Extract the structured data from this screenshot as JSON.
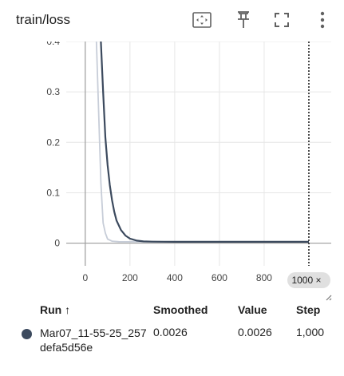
{
  "card": {
    "title": "train/loss",
    "tools": [
      {
        "name": "fit-domain-icon"
      },
      {
        "name": "pin-icon"
      },
      {
        "name": "fullscreen-icon"
      },
      {
        "name": "more-vert-icon"
      }
    ]
  },
  "chart_data": {
    "type": "line",
    "xlabel": "",
    "ylabel": "",
    "xlim": [
      -85,
      1100
    ],
    "ylim": [
      -0.045,
      0.4
    ],
    "x_ticks": [
      "0",
      "200",
      "400",
      "600",
      "800"
    ],
    "y_ticks": [
      "0",
      "0.1",
      "0.2",
      "0.3",
      "0.4"
    ],
    "hover_x": 1000,
    "hover_label": "1000",
    "grid": true,
    "series": [
      {
        "role": "raw",
        "color": "#c7cdd8",
        "x": [
          50,
          60,
          70,
          80,
          90,
          100,
          120,
          150,
          200,
          300,
          500,
          700,
          1000
        ],
        "y": [
          0.4,
          0.26,
          0.12,
          0.04,
          0.02,
          0.008,
          0.004,
          0.0028,
          0.0026,
          0.0026,
          0.0026,
          0.0026,
          0.0026
        ]
      },
      {
        "role": "smoothed",
        "color": "#3c4a5e",
        "x": [
          70,
          80,
          90,
          100,
          110,
          120,
          130,
          140,
          160,
          180,
          200,
          230,
          260,
          300,
          350,
          400,
          500,
          700,
          1000
        ],
        "y": [
          0.4,
          0.3,
          0.21,
          0.155,
          0.115,
          0.085,
          0.062,
          0.045,
          0.026,
          0.015,
          0.009,
          0.005,
          0.0035,
          0.003,
          0.0028,
          0.0027,
          0.0026,
          0.0026,
          0.0026
        ]
      }
    ]
  },
  "table": {
    "headers": {
      "run": "Run ↑",
      "smoothed": "Smoothed",
      "value": "Value",
      "step": "Step"
    },
    "row": {
      "color": "#3c4a5e",
      "run": "Mar07_11-55-25_257defa5d56e",
      "smoothed": "0.0026",
      "value": "0.0026",
      "step": "1,000"
    }
  }
}
